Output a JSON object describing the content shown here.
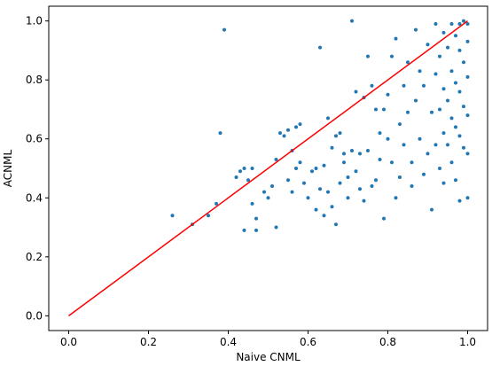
{
  "chart_data": {
    "type": "scatter",
    "title": "",
    "xlabel": "Naive CNML",
    "ylabel": "ACNML",
    "xlim": [
      -0.05,
      1.05
    ],
    "ylim": [
      -0.05,
      1.05
    ],
    "xticks": [
      "0.0",
      "0.2",
      "0.4",
      "0.6",
      "0.8",
      "1.0"
    ],
    "yticks": [
      "0.0",
      "0.2",
      "0.4",
      "0.6",
      "0.8",
      "1.0"
    ],
    "grid": false,
    "legend": "none",
    "colors": {
      "points": "#1f77b4",
      "reference_line": "#ff0000"
    },
    "reference_line": {
      "x": [
        0,
        1
      ],
      "y": [
        0,
        1
      ]
    },
    "series": [
      {
        "points": [
          [
            0.26,
            0.34
          ],
          [
            0.31,
            0.31
          ],
          [
            0.35,
            0.34
          ],
          [
            0.37,
            0.38
          ],
          [
            0.38,
            0.62
          ],
          [
            0.39,
            0.97
          ],
          [
            0.42,
            0.47
          ],
          [
            0.43,
            0.49
          ],
          [
            0.44,
            0.5
          ],
          [
            0.44,
            0.29
          ],
          [
            0.45,
            0.46
          ],
          [
            0.46,
            0.38
          ],
          [
            0.46,
            0.5
          ],
          [
            0.47,
            0.33
          ],
          [
            0.47,
            0.29
          ],
          [
            0.49,
            0.42
          ],
          [
            0.5,
            0.4
          ],
          [
            0.51,
            0.44
          ],
          [
            0.52,
            0.3
          ],
          [
            0.52,
            0.53
          ],
          [
            0.53,
            0.62
          ],
          [
            0.54,
            0.61
          ],
          [
            0.55,
            0.46
          ],
          [
            0.55,
            0.63
          ],
          [
            0.56,
            0.42
          ],
          [
            0.56,
            0.56
          ],
          [
            0.57,
            0.5
          ],
          [
            0.57,
            0.64
          ],
          [
            0.58,
            0.52
          ],
          [
            0.58,
            0.65
          ],
          [
            0.59,
            0.45
          ],
          [
            0.6,
            0.4
          ],
          [
            0.61,
            0.49
          ],
          [
            0.62,
            0.36
          ],
          [
            0.62,
            0.5
          ],
          [
            0.63,
            0.91
          ],
          [
            0.63,
            0.43
          ],
          [
            0.64,
            0.34
          ],
          [
            0.64,
            0.51
          ],
          [
            0.65,
            0.67
          ],
          [
            0.65,
            0.42
          ],
          [
            0.66,
            0.37
          ],
          [
            0.66,
            0.57
          ],
          [
            0.67,
            0.31
          ],
          [
            0.67,
            0.61
          ],
          [
            0.68,
            0.62
          ],
          [
            0.68,
            0.45
          ],
          [
            0.69,
            0.55
          ],
          [
            0.69,
            0.52
          ],
          [
            0.7,
            0.4
          ],
          [
            0.7,
            0.47
          ],
          [
            0.71,
            1.0
          ],
          [
            0.71,
            0.56
          ],
          [
            0.72,
            0.76
          ],
          [
            0.72,
            0.49
          ],
          [
            0.73,
            0.43
          ],
          [
            0.73,
            0.55
          ],
          [
            0.74,
            0.74
          ],
          [
            0.74,
            0.39
          ],
          [
            0.75,
            0.88
          ],
          [
            0.75,
            0.56
          ],
          [
            0.76,
            0.78
          ],
          [
            0.76,
            0.44
          ],
          [
            0.77,
            0.7
          ],
          [
            0.77,
            0.46
          ],
          [
            0.78,
            0.62
          ],
          [
            0.78,
            0.53
          ],
          [
            0.79,
            0.33
          ],
          [
            0.79,
            0.7
          ],
          [
            0.8,
            0.6
          ],
          [
            0.8,
            0.75
          ],
          [
            0.81,
            0.88
          ],
          [
            0.81,
            0.52
          ],
          [
            0.82,
            0.94
          ],
          [
            0.82,
            0.4
          ],
          [
            0.83,
            0.65
          ],
          [
            0.83,
            0.47
          ],
          [
            0.84,
            0.78
          ],
          [
            0.84,
            0.58
          ],
          [
            0.85,
            0.86
          ],
          [
            0.85,
            0.69
          ],
          [
            0.86,
            0.52
          ],
          [
            0.86,
            0.44
          ],
          [
            0.87,
            0.97
          ],
          [
            0.87,
            0.73
          ],
          [
            0.88,
            0.6
          ],
          [
            0.88,
            0.83
          ],
          [
            0.89,
            0.78
          ],
          [
            0.89,
            0.48
          ],
          [
            0.9,
            0.92
          ],
          [
            0.9,
            0.55
          ],
          [
            0.91,
            0.69
          ],
          [
            0.91,
            0.36
          ],
          [
            0.92,
            0.99
          ],
          [
            0.92,
            0.82
          ],
          [
            0.92,
            0.58
          ],
          [
            0.93,
            0.88
          ],
          [
            0.93,
            0.7
          ],
          [
            0.93,
            0.5
          ],
          [
            0.94,
            0.96
          ],
          [
            0.94,
            0.77
          ],
          [
            0.94,
            0.62
          ],
          [
            0.94,
            0.45
          ],
          [
            0.95,
            0.91
          ],
          [
            0.95,
            0.73
          ],
          [
            0.95,
            0.58
          ],
          [
            0.96,
            0.99
          ],
          [
            0.96,
            0.83
          ],
          [
            0.96,
            0.67
          ],
          [
            0.96,
            0.52
          ],
          [
            0.97,
            0.95
          ],
          [
            0.97,
            0.79
          ],
          [
            0.97,
            0.64
          ],
          [
            0.97,
            0.46
          ],
          [
            0.98,
            0.99
          ],
          [
            0.98,
            0.9
          ],
          [
            0.98,
            0.76
          ],
          [
            0.98,
            0.61
          ],
          [
            0.98,
            0.39
          ],
          [
            0.99,
            1.0
          ],
          [
            0.99,
            0.86
          ],
          [
            0.99,
            0.71
          ],
          [
            0.99,
            0.57
          ],
          [
            1.0,
            0.99
          ],
          [
            1.0,
            0.93
          ],
          [
            1.0,
            0.81
          ],
          [
            1.0,
            0.68
          ],
          [
            1.0,
            0.55
          ],
          [
            1.0,
            0.4
          ]
        ]
      }
    ]
  }
}
